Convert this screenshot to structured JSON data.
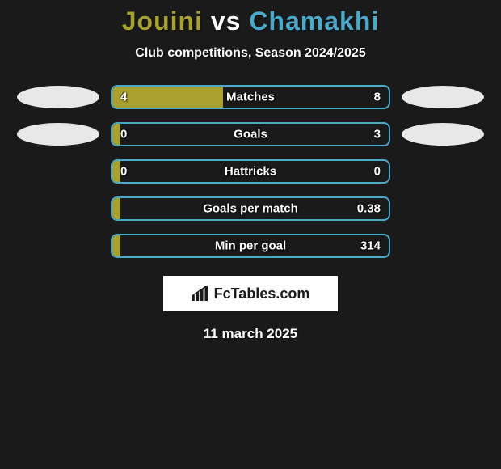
{
  "title": {
    "player1": "Jouini",
    "vs": "vs",
    "player2": "Chamakhi",
    "player1_color": "#a8a02f",
    "vs_color": "#ffffff",
    "player2_color": "#4aa8c9"
  },
  "subtitle": "Club competitions, Season 2024/2025",
  "colors": {
    "background": "#1a1a1a",
    "fill": "#a8a02f",
    "border": "#4aa8c9",
    "badge_left": "#e8e8e8",
    "badge_right": "#e8e8e8",
    "text": "#ffffff"
  },
  "bar_track_width": 346,
  "rows": [
    {
      "label": "Matches",
      "left_val": "4",
      "right_val": "8",
      "fill_percent": 40,
      "show_badges": true
    },
    {
      "label": "Goals",
      "left_val": "0",
      "right_val": "3",
      "fill_percent": 3,
      "show_badges": true
    },
    {
      "label": "Hattricks",
      "left_val": "0",
      "right_val": "0",
      "fill_percent": 3,
      "show_badges": false
    },
    {
      "label": "Goals per match",
      "left_val": "",
      "right_val": "0.38",
      "fill_percent": 3,
      "show_badges": false
    },
    {
      "label": "Min per goal",
      "left_val": "",
      "right_val": "314",
      "fill_percent": 3,
      "show_badges": false
    }
  ],
  "watermark": {
    "text": "FcTables.com"
  },
  "date": "11 march 2025"
}
